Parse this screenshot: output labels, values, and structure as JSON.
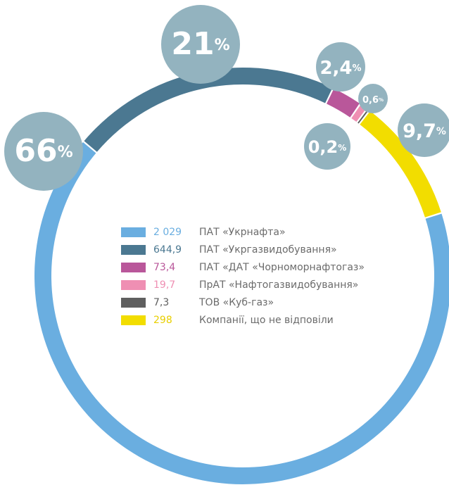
{
  "chart_data": {
    "type": "donut",
    "categories": [
      "ПАТ «Укрнафта»",
      "ПАТ «Укргазвидобування»",
      "ПАТ «ДАТ «Чорноморнафтогаз»",
      "ПрАТ «Нафтогазвидобування»",
      "ТОВ «Куб-газ»",
      "Компанії, що не відповіли"
    ],
    "values": [
      2029,
      644.9,
      73.4,
      19.7,
      7.3,
      298
    ],
    "value_labels": [
      "2 029",
      "644,9",
      "73,4",
      "19,7",
      "7,3",
      "298"
    ],
    "colors": [
      "#6aaee0",
      "#4b7891",
      "#b9579a",
      "#ef8fb3",
      "#5f5f5f",
      "#f2dd00"
    ],
    "percent_labels": [
      "66",
      "21",
      "2,4",
      "0,6",
      "0,2",
      "9,7"
    ],
    "percent_sign": "%"
  }
}
